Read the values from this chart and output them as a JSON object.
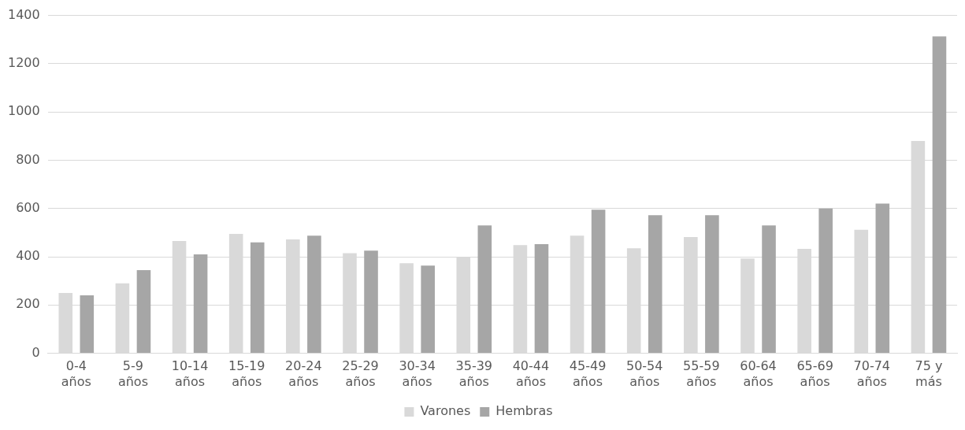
{
  "chart_data": {
    "type": "bar",
    "categories": [
      "0-4 años",
      "5-9 años",
      "10-14 años",
      "15-19 años",
      "20-24 años",
      "25-29 años",
      "30-34 años",
      "35-39 años",
      "40-44 años",
      "45-49 años",
      "50-54 años",
      "55-59 años",
      "60-64 años",
      "65-69 años",
      "70-74 años",
      "75 y más"
    ],
    "series": [
      {
        "name": "Varones",
        "color": "#d9d9d9",
        "values": [
          250,
          290,
          465,
          495,
          472,
          415,
          373,
          398,
          448,
          487,
          435,
          482,
          393,
          433,
          512,
          880
        ]
      },
      {
        "name": "Hembras",
        "color": "#a6a6a6",
        "values": [
          240,
          345,
          410,
          460,
          487,
          425,
          363,
          530,
          452,
          595,
          572,
          572,
          530,
          600,
          620,
          1313
        ]
      }
    ],
    "ylim": [
      0,
      1400
    ],
    "yticks": [
      0,
      200,
      400,
      600,
      800,
      1000,
      1200,
      1400
    ],
    "grid": "y",
    "legend": "bottom"
  }
}
